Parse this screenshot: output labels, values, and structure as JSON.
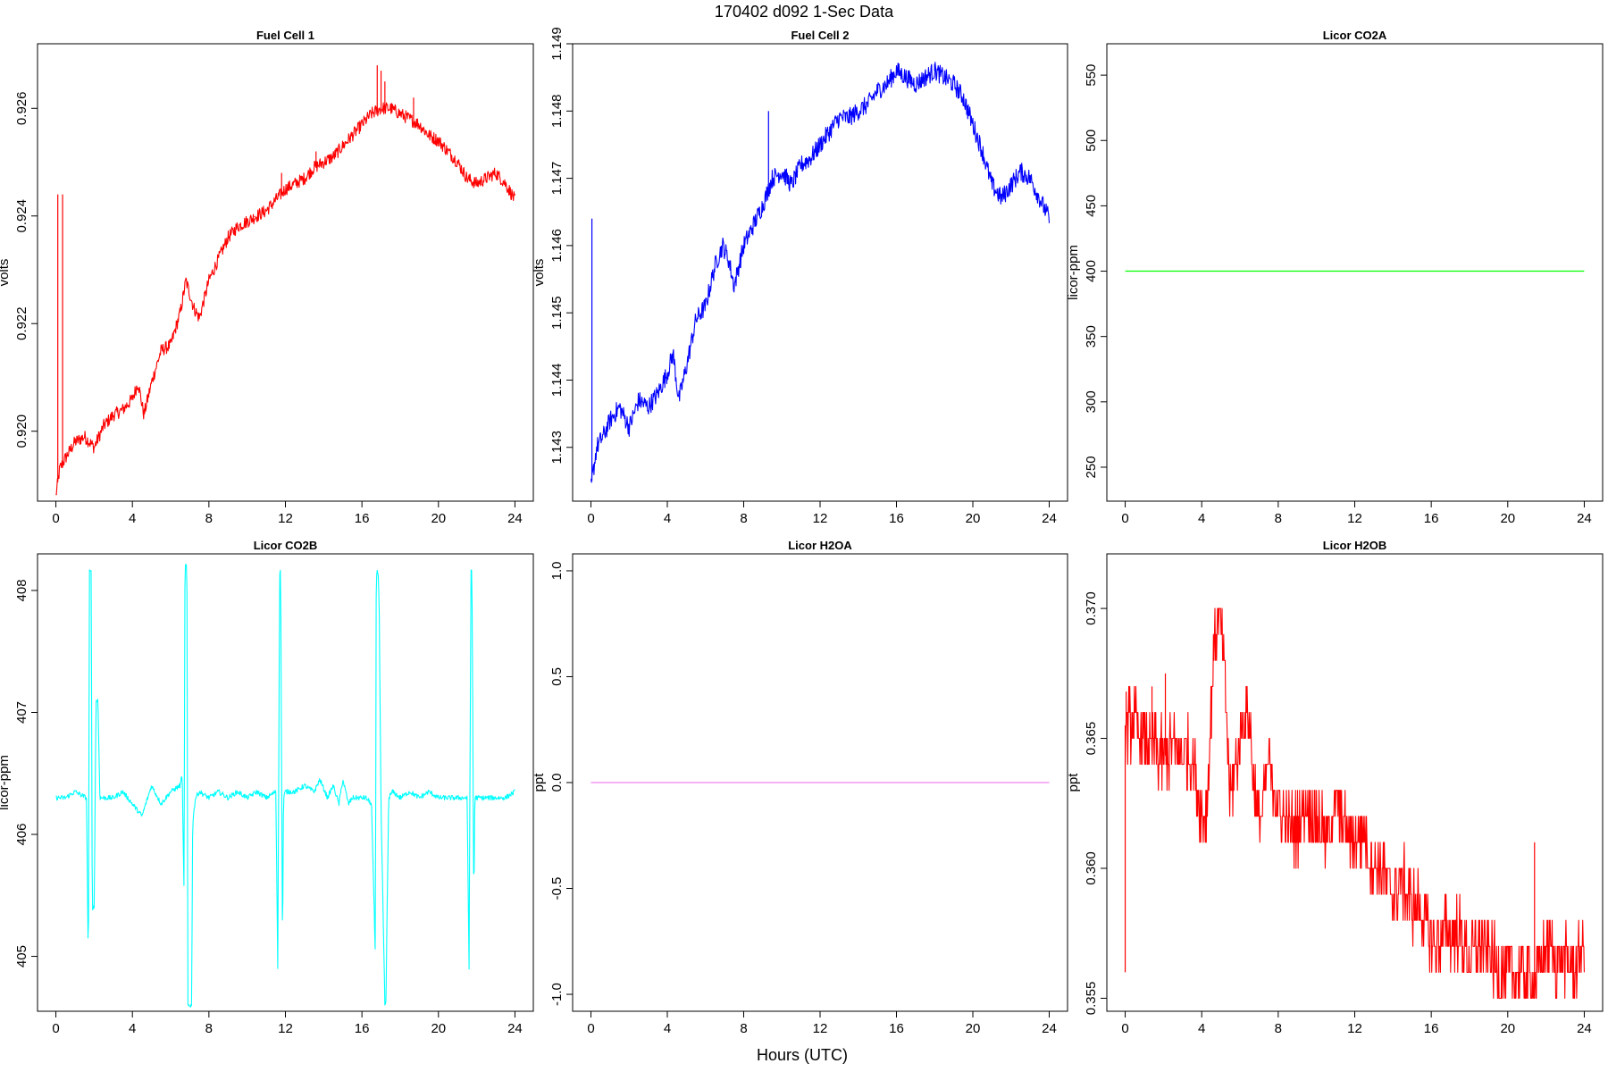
{
  "figure": {
    "title": "170402   d092   1-Sec Data",
    "xlabel": "Hours (UTC)"
  },
  "chart_data": [
    {
      "id": "fc1",
      "type": "line",
      "title": "Fuel Cell 1",
      "ylabel": "volts",
      "color": "#ff0000",
      "xlim": [
        0,
        24
      ],
      "ylim": [
        0.9187,
        0.9272
      ],
      "xticks": [
        "0",
        "4",
        "8",
        "12",
        "16",
        "20",
        "24"
      ],
      "yticks": [
        {
          "v": 0.92,
          "label": "0.920"
        },
        {
          "v": 0.922,
          "label": "0.922"
        },
        {
          "v": 0.924,
          "label": "0.924"
        },
        {
          "v": 0.926,
          "label": "0.926"
        }
      ],
      "noise": 0.00012,
      "series": [
        {
          "x": [
            0,
            0.2,
            0.5,
            1,
            1.5,
            2,
            2.5,
            3,
            3.5,
            4,
            4.3,
            4.6,
            5,
            5.5,
            6,
            6.5,
            6.8,
            7.2,
            7.5,
            8,
            8.5,
            9,
            9.5,
            10,
            10.5,
            11,
            11.5,
            12,
            12.5,
            13,
            13.5,
            14,
            14.5,
            15,
            15.5,
            16,
            16.5,
            17,
            17.5,
            18,
            18.5,
            19,
            19.5,
            20,
            20.5,
            21,
            21.5,
            22,
            22.5,
            23,
            23.5,
            24
          ],
          "values": [
            0.9188,
            0.9193,
            0.9195,
            0.9198,
            0.9199,
            0.9197,
            0.9201,
            0.9203,
            0.9204,
            0.9206,
            0.9209,
            0.9203,
            0.9209,
            0.9215,
            0.9216,
            0.9222,
            0.9228,
            0.9223,
            0.9221,
            0.9228,
            0.9232,
            0.9236,
            0.9238,
            0.9239,
            0.924,
            0.9241,
            0.9243,
            0.9245,
            0.9246,
            0.9247,
            0.9249,
            0.925,
            0.9251,
            0.9253,
            0.9255,
            0.9257,
            0.9259,
            0.926,
            0.926,
            0.9259,
            0.9258,
            0.9257,
            0.9255,
            0.9254,
            0.9252,
            0.925,
            0.9247,
            0.9246,
            0.9247,
            0.9248,
            0.9246,
            0.9243
          ]
        }
      ],
      "spikes": [
        {
          "x": 0.1,
          "y": 0.9244
        },
        {
          "x": 0.35,
          "y": 0.9244
        },
        {
          "x": 10.4,
          "y": 0.924
        },
        {
          "x": 11.8,
          "y": 0.9248
        },
        {
          "x": 13.6,
          "y": 0.9252
        },
        {
          "x": 16.8,
          "y": 0.9268
        },
        {
          "x": 17.0,
          "y": 0.9267
        },
        {
          "x": 17.2,
          "y": 0.9265
        },
        {
          "x": 18.7,
          "y": 0.9262
        }
      ]
    },
    {
      "id": "fc2",
      "type": "line",
      "title": "Fuel Cell 2",
      "ylabel": "volts",
      "color": "#0000ff",
      "xlim": [
        0,
        24
      ],
      "ylim": [
        1.1422,
        1.149
      ],
      "xticks": [
        "0",
        "4",
        "8",
        "12",
        "16",
        "20",
        "24"
      ],
      "yticks": [
        {
          "v": 1.143,
          "label": "1.143"
        },
        {
          "v": 1.144,
          "label": "1.144"
        },
        {
          "v": 1.145,
          "label": "1.145"
        },
        {
          "v": 1.146,
          "label": "1.146"
        },
        {
          "v": 1.147,
          "label": "1.147"
        },
        {
          "v": 1.148,
          "label": "1.148"
        },
        {
          "v": 1.149,
          "label": "1.149"
        }
      ],
      "noise": 0.00014,
      "series": [
        {
          "x": [
            0,
            0.3,
            0.7,
            1,
            1.5,
            2,
            2.5,
            3,
            3.5,
            4,
            4.3,
            4.6,
            5,
            5.5,
            6,
            6.5,
            6.9,
            7.2,
            7.5,
            8,
            8.5,
            9,
            9.5,
            10,
            10.5,
            11,
            11.5,
            12,
            12.5,
            13,
            13.5,
            14,
            14.5,
            15,
            15.5,
            16,
            16.5,
            17,
            17.5,
            18,
            18.5,
            19,
            19.5,
            20,
            20.5,
            21,
            21.5,
            22,
            22.5,
            23,
            23.5,
            24
          ],
          "values": [
            1.1424,
            1.143,
            1.1432,
            1.1434,
            1.1436,
            1.1433,
            1.1437,
            1.1436,
            1.1438,
            1.1441,
            1.1444,
            1.1437,
            1.1442,
            1.1449,
            1.1451,
            1.1457,
            1.146,
            1.1458,
            1.1454,
            1.146,
            1.1463,
            1.1466,
            1.147,
            1.1471,
            1.1469,
            1.1472,
            1.1473,
            1.1475,
            1.1477,
            1.1479,
            1.1479,
            1.148,
            1.1481,
            1.1483,
            1.1484,
            1.1486,
            1.1485,
            1.1484,
            1.1485,
            1.1486,
            1.1485,
            1.1484,
            1.1482,
            1.1478,
            1.1474,
            1.1469,
            1.1467,
            1.1469,
            1.1471,
            1.147,
            1.1467,
            1.1464
          ]
        }
      ],
      "spikes": [
        {
          "x": 0.05,
          "y": 1.1464
        },
        {
          "x": 9.3,
          "y": 1.148
        },
        {
          "x": 16.1,
          "y": 1.1487
        },
        {
          "x": 18.0,
          "y": 1.1487
        }
      ]
    },
    {
      "id": "co2a",
      "type": "line",
      "title": "Licor CO2A",
      "ylabel": "licor-ppm",
      "color": "#00ff00",
      "xlim": [
        0,
        24
      ],
      "ylim": [
        224,
        574
      ],
      "xticks": [
        "0",
        "4",
        "8",
        "12",
        "16",
        "20",
        "24"
      ],
      "yticks": [
        {
          "v": 250,
          "label": "250"
        },
        {
          "v": 300,
          "label": "300"
        },
        {
          "v": 350,
          "label": "350"
        },
        {
          "v": 400,
          "label": "400"
        },
        {
          "v": 450,
          "label": "450"
        },
        {
          "v": 500,
          "label": "500"
        },
        {
          "v": 550,
          "label": "550"
        }
      ],
      "noise": 0,
      "series": [
        {
          "x": [
            0,
            24
          ],
          "values": [
            400,
            400
          ]
        }
      ]
    },
    {
      "id": "co2b",
      "type": "line",
      "title": "Licor CO2B",
      "ylabel": "licor-ppm",
      "color": "#00ffff",
      "xlim": [
        0,
        24
      ],
      "ylim": [
        404.55,
        408.3
      ],
      "xticks": [
        "0",
        "4",
        "8",
        "12",
        "16",
        "20",
        "24"
      ],
      "yticks": [
        {
          "v": 405,
          "label": "405"
        },
        {
          "v": 406,
          "label": "406"
        },
        {
          "v": 407,
          "label": "407"
        },
        {
          "v": 408,
          "label": "408"
        }
      ],
      "noise": 0.02,
      "series": [
        {
          "x": [
            0,
            0.5,
            1,
            1.6,
            1.7,
            1.75,
            1.85,
            1.9,
            2.0,
            2.1,
            2.2,
            2.3,
            2.6,
            3,
            3.5,
            4,
            4.5,
            5,
            5.5,
            6,
            6.5,
            6.6,
            6.7,
            6.75,
            6.85,
            6.9,
            7.1,
            7.15,
            7.3,
            7.5,
            8,
            8.5,
            9,
            9.5,
            10,
            10.5,
            11,
            11.5,
            11.6,
            11.7,
            11.75,
            11.85,
            11.9,
            12.0,
            12.2,
            12.5,
            13,
            13.5,
            13.8,
            14.2,
            14.5,
            14.8,
            15.0,
            15.3,
            15.5,
            15.8,
            16.2,
            16.5,
            16.7,
            16.75,
            16.85,
            16.9,
            17.0,
            17.2,
            17.25,
            17.4,
            17.6,
            18,
            18.5,
            19,
            19.5,
            20,
            20.5,
            21,
            21.5,
            21.6,
            21.7,
            21.75,
            21.85,
            21.9,
            22.0,
            22.5,
            23,
            23.5,
            24
          ],
          "values": [
            406.3,
            406.3,
            406.35,
            406.3,
            404.85,
            408.15,
            408.15,
            405.4,
            405.4,
            407.1,
            407.1,
            406.3,
            406.3,
            406.3,
            406.35,
            406.25,
            406.15,
            406.4,
            406.25,
            406.35,
            406.4,
            406.5,
            405.5,
            408.2,
            408.2,
            404.6,
            404.6,
            406.1,
            406.3,
            406.35,
            406.3,
            406.35,
            406.3,
            406.35,
            406.3,
            406.35,
            406.3,
            406.35,
            404.9,
            408.15,
            408.15,
            405.0,
            406.3,
            406.35,
            406.35,
            406.35,
            406.4,
            406.35,
            406.45,
            406.3,
            406.4,
            406.25,
            406.45,
            406.25,
            406.3,
            406.3,
            406.3,
            406.25,
            405.0,
            408.15,
            408.15,
            407.9,
            406.2,
            404.6,
            404.6,
            406.3,
            406.35,
            406.3,
            406.35,
            406.3,
            406.35,
            406.3,
            406.3,
            406.3,
            406.3,
            404.9,
            408.15,
            408.15,
            405.4,
            406.3,
            406.3,
            406.3,
            406.3,
            406.3,
            406.35
          ]
        }
      ]
    },
    {
      "id": "h2oa",
      "type": "line",
      "title": "Licor H2OA",
      "ylabel": "ppt",
      "color": "#ee82ee",
      "xlim": [
        0,
        24
      ],
      "ylim": [
        -1.08,
        1.08
      ],
      "xticks": [
        "0",
        "4",
        "8",
        "12",
        "16",
        "20",
        "24"
      ],
      "yticks": [
        {
          "v": -1.0,
          "label": "-1.0"
        },
        {
          "v": -0.5,
          "label": "-0.5"
        },
        {
          "v": 0.0,
          "label": "0.0"
        },
        {
          "v": 0.5,
          "label": "0.5"
        },
        {
          "v": 1.0,
          "label": "1.0"
        }
      ],
      "noise": 0,
      "series": [
        {
          "x": [
            0,
            24
          ],
          "values": [
            0,
            0
          ]
        }
      ]
    },
    {
      "id": "h2ob",
      "type": "line",
      "title": "Licor H2OB",
      "ylabel": "ppt",
      "color": "#ff0000",
      "xlim": [
        0,
        24
      ],
      "ylim": [
        0.3545,
        0.3721
      ],
      "xticks": [
        "0",
        "4",
        "8",
        "12",
        "16",
        "20",
        "24"
      ],
      "yticks": [
        {
          "v": 0.355,
          "label": "0.355"
        },
        {
          "v": 0.36,
          "label": "0.360"
        },
        {
          "v": 0.365,
          "label": "0.365"
        },
        {
          "v": 0.37,
          "label": "0.370"
        }
      ],
      "noise": 0.0012,
      "quantum": 0.001,
      "series": [
        {
          "x": [
            0,
            0.5,
            1,
            1.5,
            2,
            2.5,
            3,
            3.5,
            4,
            4.3,
            4.6,
            4.9,
            5.2,
            5.5,
            5.8,
            6.1,
            6.4,
            6.7,
            7,
            7.5,
            8,
            8.5,
            9,
            9.5,
            10,
            10.5,
            11,
            11.5,
            12,
            12.5,
            13,
            13.5,
            14,
            14.5,
            15,
            15.5,
            16,
            16.5,
            17,
            17.5,
            18,
            18.5,
            19,
            19.5,
            20,
            20.5,
            21,
            21.5,
            22,
            22.5,
            23,
            23.5,
            24
          ],
          "values": [
            0.3655,
            0.3655,
            0.3648,
            0.3645,
            0.3643,
            0.3645,
            0.3643,
            0.3645,
            0.362,
            0.3625,
            0.368,
            0.37,
            0.3675,
            0.3625,
            0.364,
            0.3655,
            0.3665,
            0.3635,
            0.3615,
            0.364,
            0.3625,
            0.3615,
            0.3615,
            0.3625,
            0.362,
            0.361,
            0.3625,
            0.3615,
            0.361,
            0.3615,
            0.36,
            0.36,
            0.359,
            0.3595,
            0.3585,
            0.3585,
            0.357,
            0.3575,
            0.3575,
            0.3575,
            0.3565,
            0.357,
            0.357,
            0.356,
            0.356,
            0.356,
            0.356,
            0.356,
            0.357,
            0.3565,
            0.3565,
            0.356,
            0.357
          ]
        }
      ],
      "spikes": [
        {
          "x": 0.0,
          "y": 0.356
        },
        {
          "x": 0.05,
          "y": 0.3668
        },
        {
          "x": 1.4,
          "y": 0.367
        },
        {
          "x": 2.1,
          "y": 0.3675
        },
        {
          "x": 21.4,
          "y": 0.361
        }
      ]
    }
  ]
}
